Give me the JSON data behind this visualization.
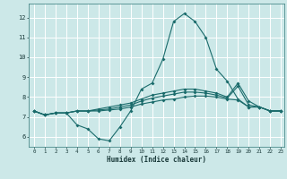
{
  "xlabel": "Humidex (Indice chaleur)",
  "bg_color": "#cce8e8",
  "grid_color": "#ffffff",
  "line_color": "#1a6b6b",
  "xlim": [
    -0.5,
    23.3
  ],
  "ylim": [
    5.5,
    12.7
  ],
  "xticks": [
    0,
    1,
    2,
    3,
    4,
    5,
    6,
    7,
    8,
    9,
    10,
    11,
    12,
    13,
    14,
    15,
    16,
    17,
    18,
    19,
    20,
    21,
    22,
    23
  ],
  "yticks": [
    6,
    7,
    8,
    9,
    10,
    11,
    12
  ],
  "line1_x": [
    0,
    1,
    2,
    3,
    4,
    5,
    6,
    7,
    8,
    9,
    10,
    11,
    12,
    13,
    14,
    15,
    16,
    17,
    18,
    19,
    20,
    21,
    22,
    23
  ],
  "line1_y": [
    7.3,
    7.1,
    7.2,
    7.2,
    6.6,
    6.4,
    5.9,
    5.8,
    6.5,
    7.3,
    8.4,
    8.7,
    9.9,
    11.8,
    12.2,
    11.8,
    11.0,
    9.4,
    8.8,
    7.9,
    7.5,
    7.5,
    7.3,
    7.3
  ],
  "line2_x": [
    0,
    1,
    2,
    3,
    4,
    5,
    6,
    7,
    8,
    9,
    10,
    11,
    12,
    13,
    14,
    15,
    16,
    17,
    18,
    19,
    20,
    21,
    22,
    23
  ],
  "line2_y": [
    7.3,
    7.1,
    7.2,
    7.2,
    7.3,
    7.3,
    7.3,
    7.35,
    7.4,
    7.5,
    7.65,
    7.75,
    7.85,
    7.9,
    8.0,
    8.05,
    8.05,
    8.0,
    7.9,
    7.85,
    7.5,
    7.5,
    7.3,
    7.3
  ],
  "line3_x": [
    0,
    1,
    2,
    3,
    4,
    5,
    6,
    7,
    8,
    9,
    10,
    11,
    12,
    13,
    14,
    15,
    16,
    17,
    18,
    19,
    20,
    21,
    22,
    23
  ],
  "line3_y": [
    7.3,
    7.1,
    7.2,
    7.2,
    7.3,
    7.3,
    7.35,
    7.4,
    7.5,
    7.6,
    7.8,
    7.95,
    8.05,
    8.15,
    8.25,
    8.25,
    8.2,
    8.1,
    7.95,
    8.55,
    7.6,
    7.5,
    7.3,
    7.3
  ],
  "line4_x": [
    0,
    1,
    2,
    3,
    4,
    5,
    6,
    7,
    8,
    9,
    10,
    11,
    12,
    13,
    14,
    15,
    16,
    17,
    18,
    19,
    20,
    21,
    22,
    23
  ],
  "line4_y": [
    7.3,
    7.1,
    7.2,
    7.2,
    7.3,
    7.3,
    7.4,
    7.5,
    7.6,
    7.7,
    7.9,
    8.1,
    8.2,
    8.3,
    8.4,
    8.4,
    8.3,
    8.2,
    8.0,
    8.7,
    7.8,
    7.5,
    7.3,
    7.3
  ]
}
